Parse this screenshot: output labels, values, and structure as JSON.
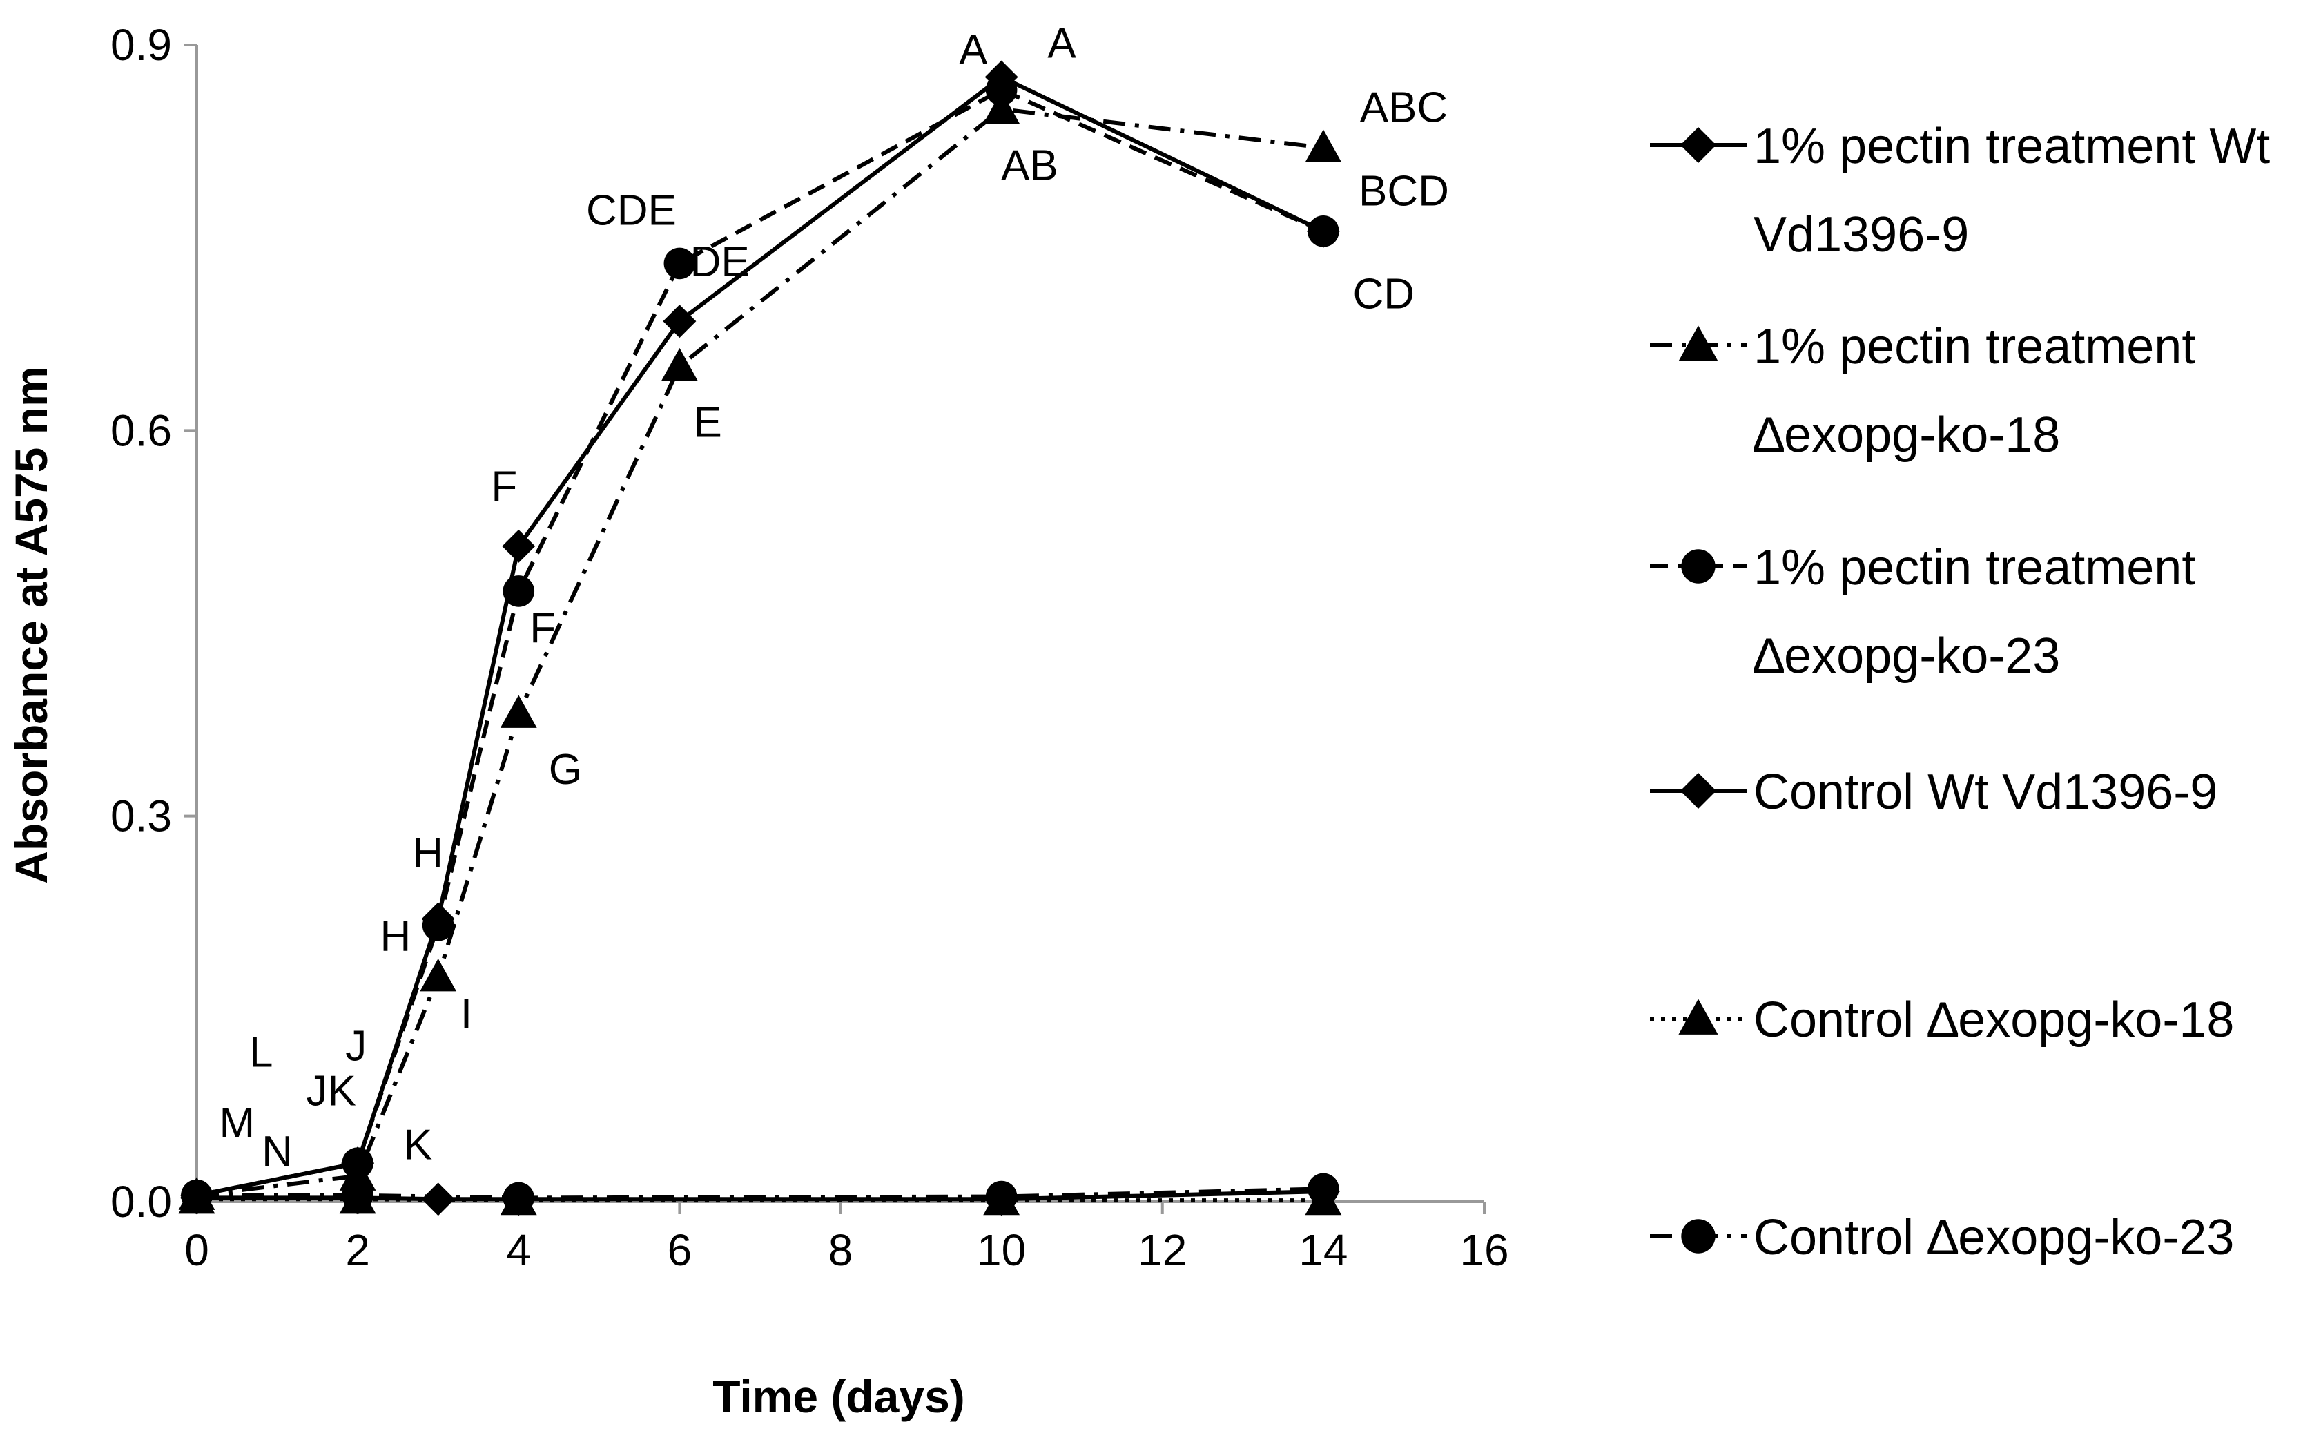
{
  "chart_data": {
    "type": "line",
    "title": "",
    "xlabel": "Time (days)",
    "ylabel": "Absorbance at A575 nm",
    "xlim": [
      0,
      16
    ],
    "ylim": [
      0,
      0.9
    ],
    "xticks": [
      0,
      2,
      4,
      6,
      8,
      10,
      12,
      14,
      16
    ],
    "xtick_labels": [
      "0",
      "2",
      "4",
      "6",
      "8",
      "10",
      "12",
      "14",
      "16"
    ],
    "yticks": [
      0,
      0.3,
      0.6,
      0.9
    ],
    "ytick_labels": [
      "0.0",
      "0.3",
      "0.6",
      "0.9"
    ],
    "grid": false,
    "legend_position": "right",
    "series": [
      {
        "name": "1% pectin treatment Wt Vd1396-9",
        "legend_lines": [
          "1% pectin treatment Wt",
          "Vd1396-9"
        ],
        "marker": "diamond",
        "dash": "solid",
        "x": [
          0,
          2,
          3,
          4,
          6,
          10,
          14
        ],
        "y": [
          0.005,
          0.03,
          0.22,
          0.51,
          0.685,
          0.875,
          0.755
        ]
      },
      {
        "name": "1% pectin treatment ∆exopg-ko-18",
        "legend_lines": [
          "1% pectin treatment",
          "∆exopg-ko-18"
        ],
        "marker": "triangle",
        "dash": "dashdot",
        "x": [
          0,
          2,
          3,
          4,
          6,
          10,
          14
        ],
        "y": [
          0.005,
          0.02,
          0.175,
          0.38,
          0.65,
          0.85,
          0.82
        ]
      },
      {
        "name": "1% pectin treatment ∆exopg-ko-23",
        "legend_lines": [
          "1% pectin treatment",
          "∆exopg-ko-23"
        ],
        "marker": "circle",
        "dash": "dashed",
        "x": [
          0,
          2,
          3,
          4,
          6,
          10,
          14
        ],
        "y": [
          0.005,
          0.03,
          0.215,
          0.475,
          0.73,
          0.865,
          0.755
        ]
      },
      {
        "name": "Control Wt Vd1396-9",
        "legend_lines": [
          "Control Wt Vd1396-9"
        ],
        "marker": "diamond",
        "dash": "solid",
        "x": [
          0,
          2,
          3,
          4,
          10,
          14
        ],
        "y": [
          0.003,
          0.003,
          0.002,
          0.002,
          0.002,
          0.008
        ]
      },
      {
        "name": "Control ∆exopg-ko-18",
        "legend_lines": [
          "Control ∆exopg-ko-18"
        ],
        "marker": "triangle",
        "dash": "dotted",
        "x": [
          0,
          2,
          4,
          10,
          14
        ],
        "y": [
          0.002,
          0.002,
          0.001,
          0.001,
          0.001
        ]
      },
      {
        "name": "Control ∆exopg-ko-23",
        "legend_lines": [
          "Control ∆exopg-ko-23"
        ],
        "marker": "circle",
        "dash": "dashdot",
        "x": [
          0,
          2,
          4,
          10,
          14
        ],
        "y": [
          0.005,
          0.005,
          0.003,
          0.004,
          0.01
        ]
      }
    ],
    "annotations": [
      {
        "text": "M",
        "x": 0.5,
        "y": 0.05
      },
      {
        "text": "N",
        "x": 1.0,
        "y": 0.028
      },
      {
        "text": "L",
        "x": 0.8,
        "y": 0.105
      },
      {
        "text": "JK",
        "x": 1.67,
        "y": 0.075
      },
      {
        "text": "J",
        "x": 1.98,
        "y": 0.11
      },
      {
        "text": "K",
        "x": 2.75,
        "y": 0.033
      },
      {
        "text": "H",
        "x": 2.47,
        "y": 0.195
      },
      {
        "text": "H",
        "x": 2.87,
        "y": 0.26
      },
      {
        "text": "I",
        "x": 3.35,
        "y": 0.135
      },
      {
        "text": "F",
        "x": 3.82,
        "y": 0.545
      },
      {
        "text": "F",
        "x": 4.3,
        "y": 0.435
      },
      {
        "text": "G",
        "x": 4.58,
        "y": 0.325
      },
      {
        "text": "CDE",
        "x": 5.4,
        "y": 0.76
      },
      {
        "text": "DE",
        "x": 6.5,
        "y": 0.72
      },
      {
        "text": "E",
        "x": 6.35,
        "y": 0.595
      },
      {
        "text": "A",
        "x": 9.65,
        "y": 0.885
      },
      {
        "text": "A",
        "x": 10.75,
        "y": 0.89
      },
      {
        "text": "AB",
        "x": 10.35,
        "y": 0.795
      },
      {
        "text": "ABC",
        "x": 15.0,
        "y": 0.84
      },
      {
        "text": "BCD",
        "x": 15.0,
        "y": 0.775
      },
      {
        "text": "CD",
        "x": 14.75,
        "y": 0.695
      }
    ]
  }
}
